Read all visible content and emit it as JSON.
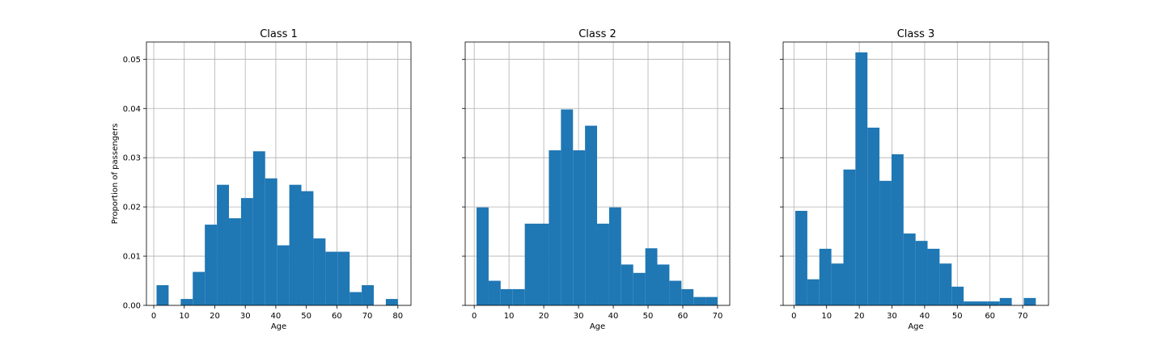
{
  "figure": {
    "ylabel": "Proportion of passengers",
    "bar_color": "#1f77b4",
    "grid": true,
    "sharey": true
  },
  "chart_data": [
    {
      "type": "bar",
      "title": "Class 1",
      "xlabel": "Age",
      "xlim": [
        -2.4,
        84.3
      ],
      "ylim": [
        0,
        0.0535
      ],
      "xticks": [
        0,
        10,
        20,
        30,
        40,
        50,
        60,
        70,
        80
      ],
      "yticks": [
        "0.00",
        "0.01",
        "0.02",
        "0.03",
        "0.04",
        "0.05"
      ],
      "bin_edges": [
        0.92,
        4.87,
        8.83,
        12.78,
        16.74,
        20.69,
        24.65,
        28.6,
        32.56,
        36.51,
        40.47,
        44.42,
        48.38,
        52.33,
        56.29,
        60.24,
        64.2,
        68.15,
        72.11,
        76.06,
        80.0
      ],
      "values": [
        0.0041,
        0.0,
        0.0013,
        0.0068,
        0.0164,
        0.0245,
        0.0177,
        0.0218,
        0.0313,
        0.0258,
        0.0122,
        0.0245,
        0.0232,
        0.0136,
        0.0109,
        0.0109,
        0.0027,
        0.0041,
        0.0,
        0.0013
      ]
    },
    {
      "type": "bar",
      "title": "Class 2",
      "xlabel": "Age",
      "xlim": [
        -2.6,
        73.5
      ],
      "ylim": [
        0,
        0.0535
      ],
      "xticks": [
        0,
        10,
        20,
        30,
        40,
        50,
        60,
        70
      ],
      "yticks": [
        "0.00",
        "0.01",
        "0.02",
        "0.03",
        "0.04",
        "0.05"
      ],
      "bin_edges": [
        0.67,
        4.14,
        7.6,
        11.07,
        14.54,
        18.0,
        21.47,
        24.94,
        28.41,
        31.87,
        35.34,
        38.81,
        42.27,
        45.74,
        49.21,
        52.67,
        56.14,
        59.61,
        63.07,
        66.54,
        70.0
      ],
      "values": [
        0.0199,
        0.005,
        0.0033,
        0.0033,
        0.0166,
        0.0166,
        0.0315,
        0.0398,
        0.0315,
        0.0365,
        0.0166,
        0.0199,
        0.0083,
        0.0066,
        0.0116,
        0.0083,
        0.005,
        0.0033,
        0.0017,
        0.0017
      ]
    },
    {
      "type": "bar",
      "title": "Class 3",
      "xlabel": "Age",
      "xlim": [
        -3.3,
        77.9
      ],
      "ylim": [
        0,
        0.0535
      ],
      "xticks": [
        0,
        10,
        20,
        30,
        40,
        50,
        60,
        70
      ],
      "yticks": [
        "0.00",
        "0.01",
        "0.02",
        "0.03",
        "0.04",
        "0.05"
      ],
      "bin_edges": [
        0.42,
        4.1,
        7.78,
        11.46,
        15.14,
        18.82,
        22.5,
        26.18,
        29.86,
        33.54,
        37.22,
        40.9,
        44.58,
        48.26,
        51.94,
        55.62,
        59.3,
        62.98,
        66.66,
        70.34,
        74.02
      ],
      "values": [
        0.0192,
        0.0053,
        0.0115,
        0.0085,
        0.0276,
        0.0514,
        0.0361,
        0.0253,
        0.0307,
        0.0146,
        0.0131,
        0.0115,
        0.0085,
        0.0038,
        0.0008,
        0.0008,
        0.0008,
        0.0015,
        0.0,
        0.0015
      ]
    }
  ]
}
